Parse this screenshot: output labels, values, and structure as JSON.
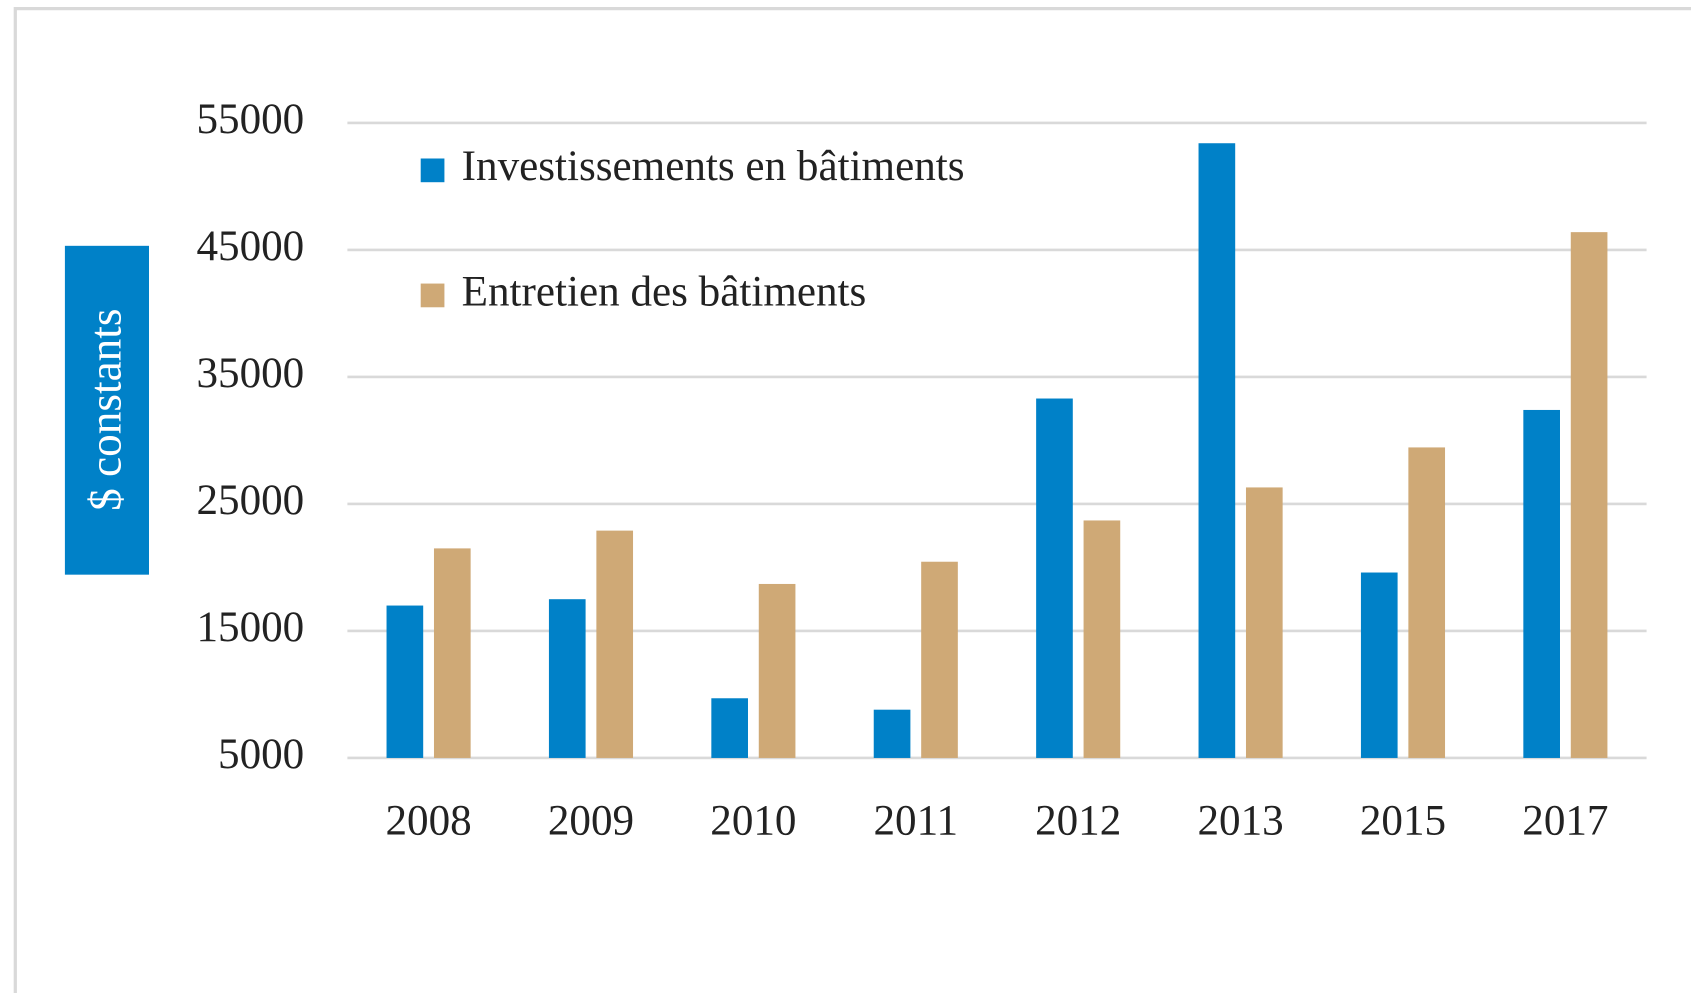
{
  "chart_data": {
    "type": "bar",
    "y_label": "$ constants",
    "categories": [
      "2008",
      "2009",
      "2010",
      "2011",
      "2012",
      "2013",
      "2015",
      "2017"
    ],
    "series": [
      {
        "name": "Investissements en bâtiments",
        "color": "#0081c8",
        "values": [
          17000,
          17500,
          9700,
          8800,
          33300,
          53400,
          19600,
          32400
        ]
      },
      {
        "name": "Entretien des bâtiments",
        "color": "#cfa976",
        "values": [
          21500,
          22900,
          18700,
          20450,
          23700,
          26300,
          29450,
          46400
        ]
      }
    ],
    "ylim": [
      5000,
      55000
    ],
    "yticks": [
      5000,
      15000,
      25000,
      35000,
      45000,
      55000
    ],
    "grid": true,
    "legend": "top-left"
  }
}
